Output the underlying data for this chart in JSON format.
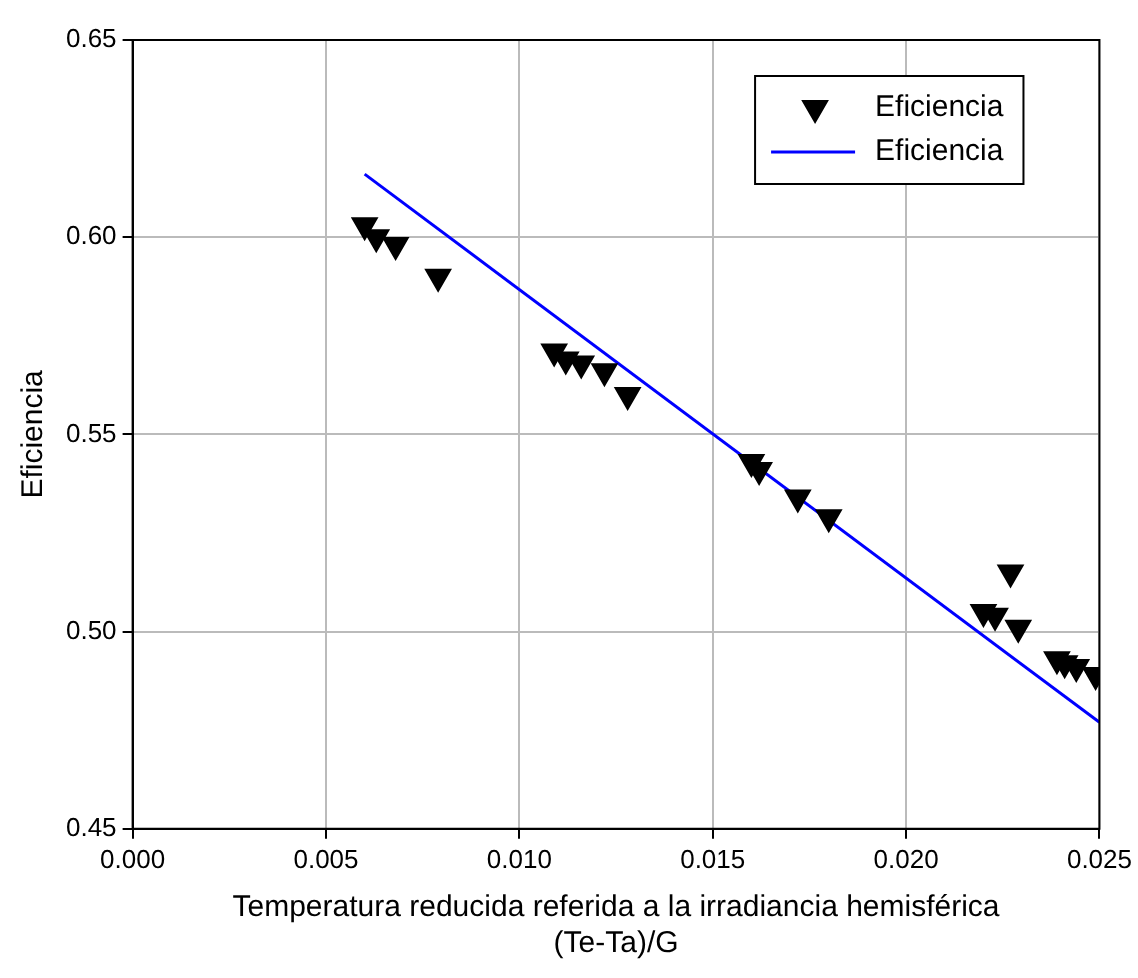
{
  "chart_data": {
    "type": "scatter",
    "xlabel": "Temperatura reducida referida a la irradiancia hemisférica\n(Te-Ta)/G",
    "ylabel": "Eficiencia",
    "xlim": [
      0,
      0.025
    ],
    "xticks": [
      {
        "value": 0,
        "label": "0.000"
      },
      {
        "value": 0.005,
        "label": "0.005"
      },
      {
        "value": 0.01,
        "label": "0.010"
      },
      {
        "value": 0.015,
        "label": "0.015"
      },
      {
        "value": 0.02,
        "label": "0.020"
      },
      {
        "value": 0.025,
        "label": "0.025"
      }
    ],
    "ylim": [
      0.45,
      0.65
    ],
    "yticks": [
      {
        "value": 0.45,
        "label": "0.45"
      },
      {
        "value": 0.5,
        "label": "0.50"
      },
      {
        "value": 0.55,
        "label": "0.55"
      },
      {
        "value": 0.6,
        "label": "0.60"
      },
      {
        "value": 0.65,
        "label": "0.65"
      }
    ],
    "grid": true,
    "legend": "top right",
    "marker": "triangle",
    "series": [
      {
        "name": "Eficiencia",
        "type": "scatter",
        "color": "#000000",
        "x": [
          0.006,
          0.0063,
          0.0068,
          0.0079,
          0.0109,
          0.0112,
          0.0116,
          0.0122,
          0.0128,
          0.016,
          0.0162,
          0.0172,
          0.018,
          0.022,
          0.0223,
          0.0227,
          0.0229,
          0.0239,
          0.0241,
          0.0244,
          0.0249
        ],
        "values": [
          0.603,
          0.6,
          0.598,
          0.59,
          0.571,
          0.569,
          0.568,
          0.566,
          0.56,
          0.543,
          0.541,
          0.534,
          0.529,
          0.505,
          0.504,
          0.515,
          0.501,
          0.493,
          0.492,
          0.491,
          0.489
        ]
      },
      {
        "name": "Eficiencia",
        "type": "line",
        "color": "#0000ff",
        "line_style": "solid",
        "marker": "none",
        "x": [
          0.006,
          0.025
        ],
        "values": [
          0.616,
          0.477
        ]
      }
    ]
  }
}
